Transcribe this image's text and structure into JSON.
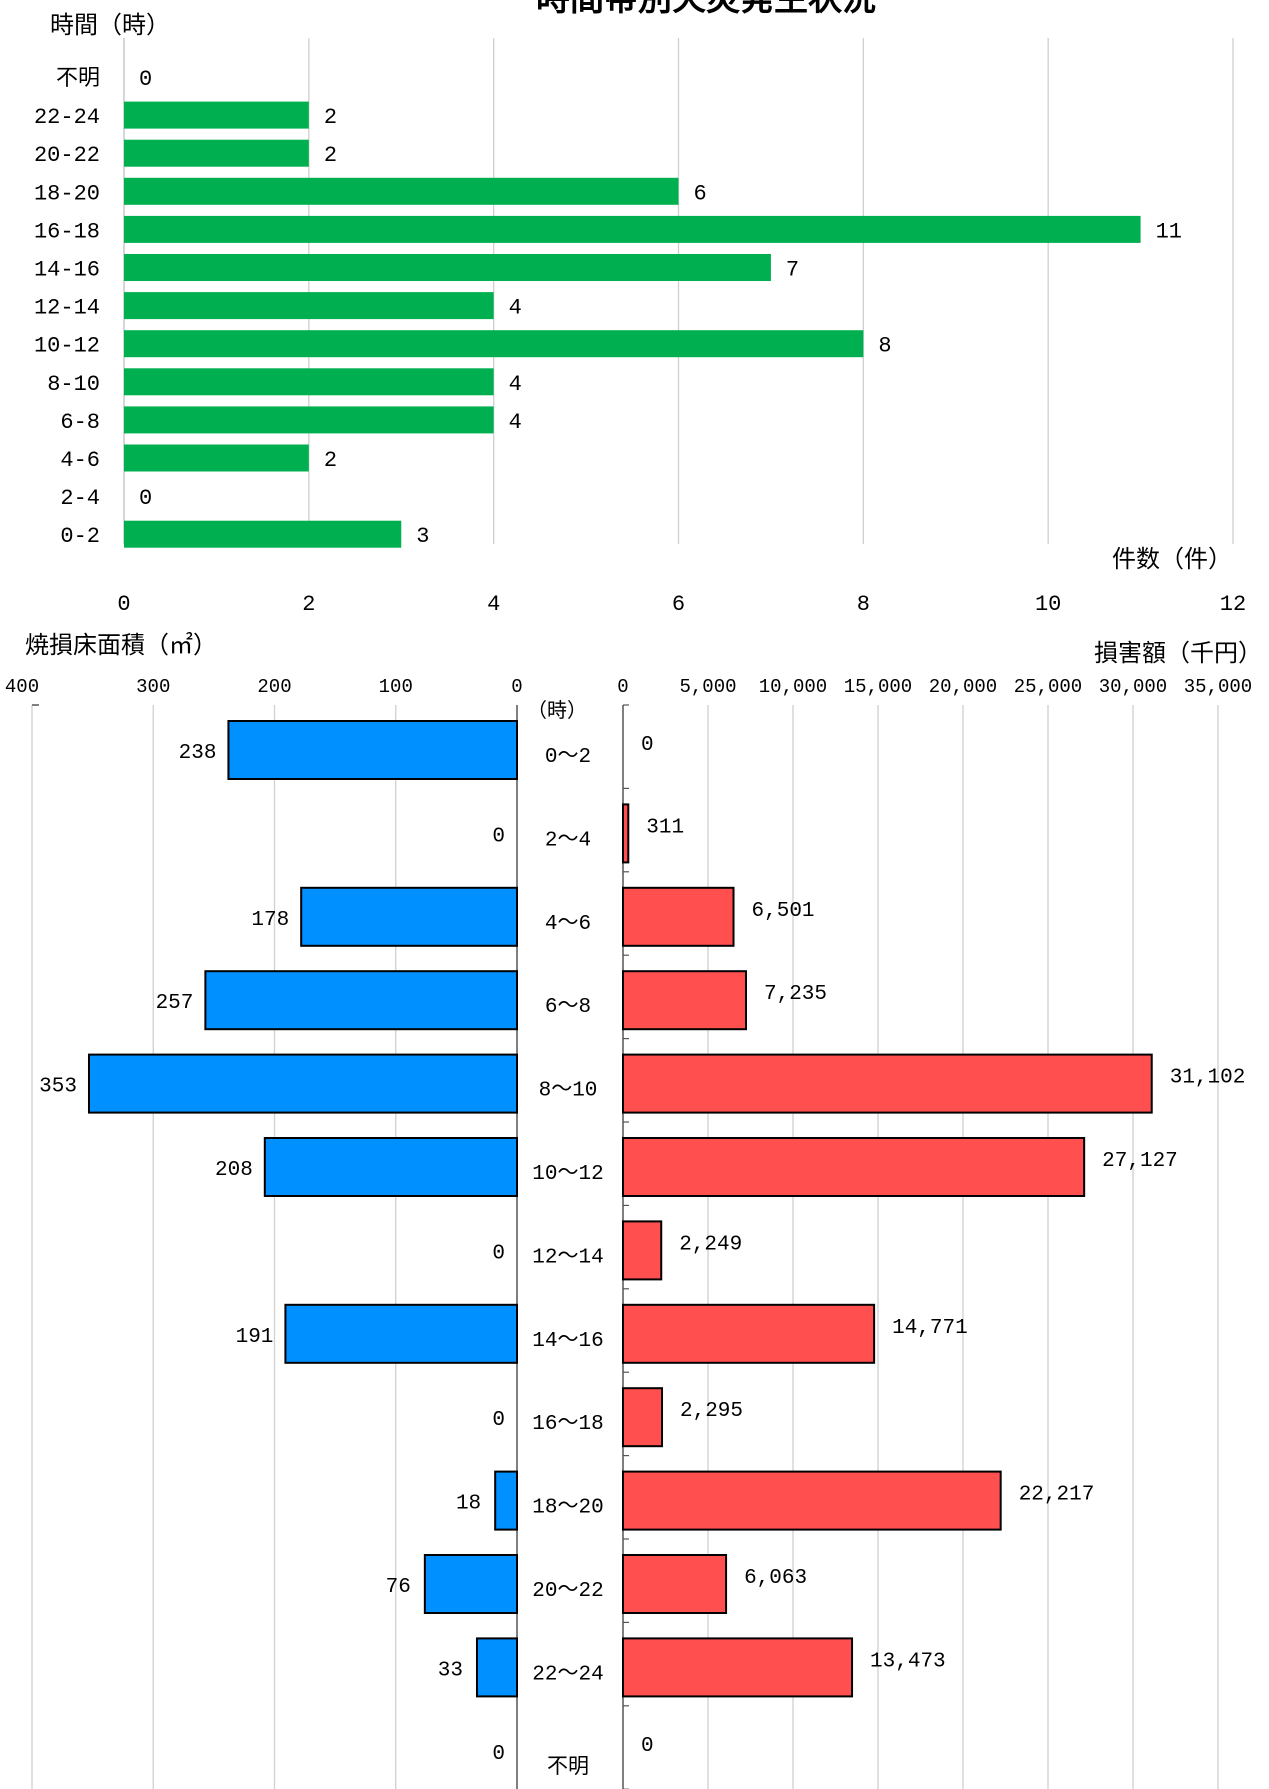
{
  "title": "時間帯別火災発生状況",
  "colors": {
    "count_bar": "#00b050",
    "area_bar": "#0090ff",
    "damage_bar": "#ff4f4f",
    "grid": "#d0d0d0",
    "text": "#000000"
  },
  "chart_data": [
    {
      "type": "bar",
      "orientation": "horizontal",
      "title": "時間帯別火災発生状況",
      "ylabel": "時間（時）",
      "xlabel": "件数（件）",
      "categories": [
        "不明",
        "22-24",
        "20-22",
        "18-20",
        "16-18",
        "14-16",
        "12-14",
        "10-12",
        "8-10",
        "6-8",
        "4-6",
        "2-4",
        "0-2"
      ],
      "values": [
        0,
        2,
        2,
        6,
        11,
        7,
        4,
        8,
        4,
        4,
        2,
        0,
        3
      ],
      "value_labels": [
        "0",
        "2",
        "2",
        "6",
        "11",
        "7",
        "4",
        "8",
        "4",
        "4",
        "2",
        "0",
        "3"
      ],
      "xlim": [
        0,
        12
      ],
      "xticks": [
        "0",
        "2",
        "4",
        "6",
        "8",
        "10",
        "12"
      ],
      "grid": true
    },
    {
      "type": "bar",
      "orientation": "horizontal",
      "direction": "right-to-left",
      "ylabel": "（時）",
      "xlabel": "焼損床面積（㎡）",
      "categories": [
        "0～2",
        "2～4",
        "4～6",
        "6～8",
        "8～10",
        "10～12",
        "12～14",
        "14～16",
        "16～18",
        "18～20",
        "20～22",
        "22～24",
        "不明"
      ],
      "values": [
        238,
        0,
        178,
        257,
        353,
        208,
        0,
        191,
        0,
        18,
        76,
        33,
        0
      ],
      "value_labels": [
        "238",
        "0",
        "178",
        "257",
        "353",
        "208",
        "0",
        "191",
        "0",
        "18",
        "76",
        "33",
        "0"
      ],
      "xlim": [
        0,
        400
      ],
      "xticks": [
        "400",
        "300",
        "200",
        "100",
        "0"
      ],
      "grid": true
    },
    {
      "type": "bar",
      "orientation": "horizontal",
      "xlabel": "損害額（千円）",
      "categories": [
        "0～2",
        "2～4",
        "4～6",
        "6～8",
        "8～10",
        "10～12",
        "12～14",
        "14～16",
        "16～18",
        "18～20",
        "20～22",
        "22～24",
        "不明"
      ],
      "values": [
        0,
        311,
        6501,
        7235,
        31102,
        27127,
        2249,
        14771,
        2295,
        22217,
        6063,
        13473,
        0
      ],
      "value_labels": [
        "0",
        "311",
        "6,501",
        "7,235",
        "31,102",
        "27,127",
        "2,249",
        "14,771",
        "2,295",
        "22,217",
        "6,063",
        "13,473",
        "0"
      ],
      "xlim": [
        0,
        35000
      ],
      "xticks": [
        "0",
        "5,000",
        "10,000",
        "15,000",
        "20,000",
        "25,000",
        "30,000",
        "35,000"
      ],
      "grid": true
    }
  ]
}
